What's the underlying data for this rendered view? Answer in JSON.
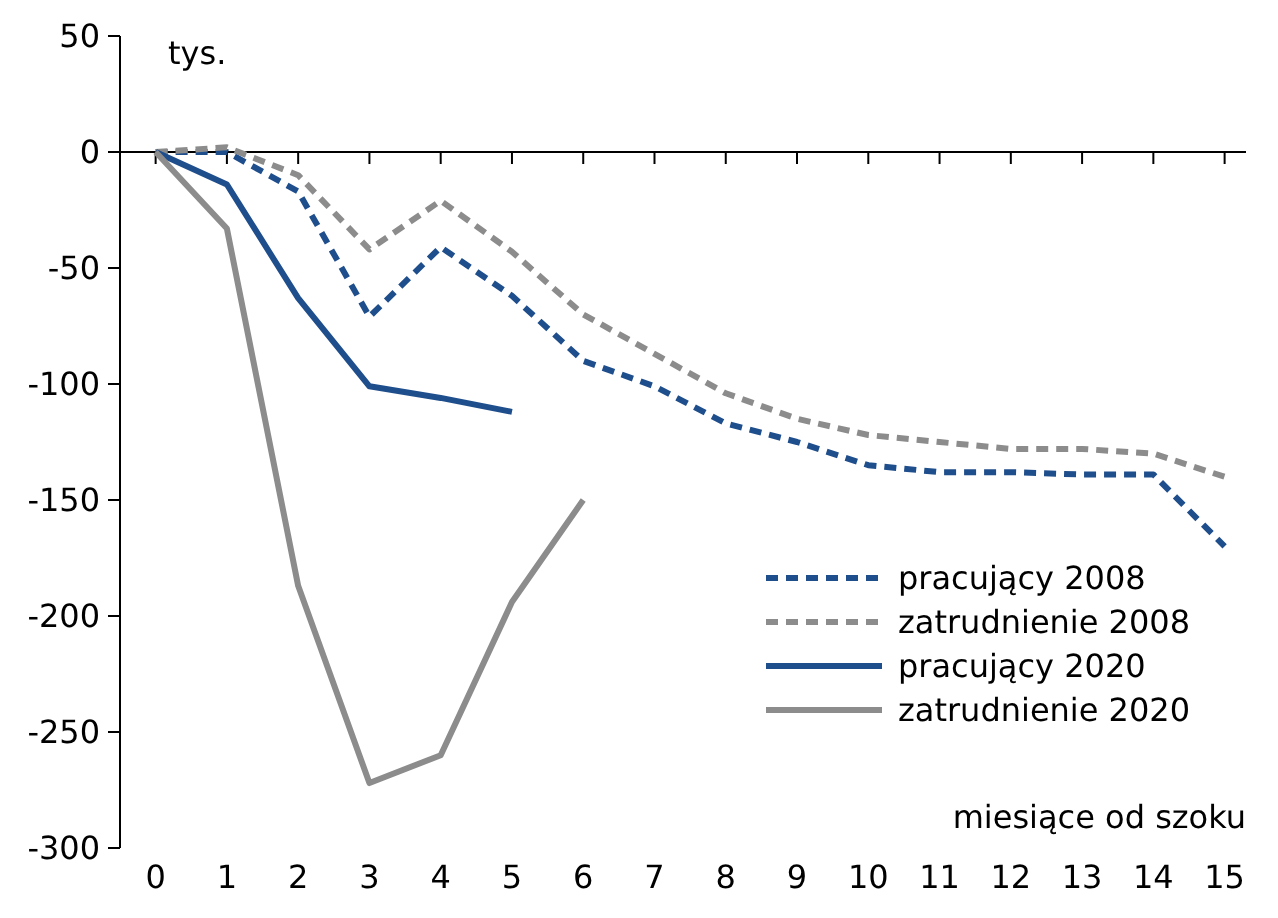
{
  "chart_data": {
    "type": "line",
    "xlabel": "miesiące od szoku",
    "ylabel": "tys.",
    "x": [
      0,
      1,
      2,
      3,
      4,
      5,
      6,
      7,
      8,
      9,
      10,
      11,
      12,
      13,
      14,
      15
    ],
    "xlim": [
      -0.5,
      15.3
    ],
    "xticks": [
      0,
      1,
      2,
      3,
      4,
      5,
      6,
      7,
      8,
      9,
      10,
      11,
      12,
      13,
      14,
      15
    ],
    "ylim": [
      -300,
      50
    ],
    "yticks": [
      -300,
      -250,
      -200,
      -150,
      -100,
      -50,
      0,
      50
    ],
    "legend": "bottom right",
    "series": [
      {
        "name": "pracujący 2008",
        "color": "#1f4e8c",
        "line_style": "dashed",
        "values": [
          0,
          0,
          -17,
          -71,
          -41,
          -62,
          -90,
          -101,
          -117,
          -125,
          -135,
          -138,
          -138,
          -139,
          -139,
          -170
        ]
      },
      {
        "name": "zatrudnienie 2008",
        "color": "#8c8c8c",
        "line_style": "dashed",
        "values": [
          0,
          2,
          -10,
          -42,
          -21,
          -43,
          -70,
          -87,
          -104,
          -115,
          -122,
          -125,
          -128,
          -128,
          -130,
          -140
        ]
      },
      {
        "name": "pracujący 2020",
        "color": "#1f4e8c",
        "line_style": "solid",
        "x": [
          0,
          1,
          2,
          3,
          4,
          5
        ],
        "values": [
          0,
          -14,
          -63,
          -101,
          -106,
          -112
        ]
      },
      {
        "name": "zatrudnienie 2020",
        "color": "#8c8c8c",
        "line_style": "solid",
        "x": [
          0,
          1,
          2,
          3,
          4,
          5,
          6
        ],
        "values": [
          0,
          -33,
          -187,
          -272,
          -260,
          -194,
          -150
        ]
      }
    ]
  }
}
